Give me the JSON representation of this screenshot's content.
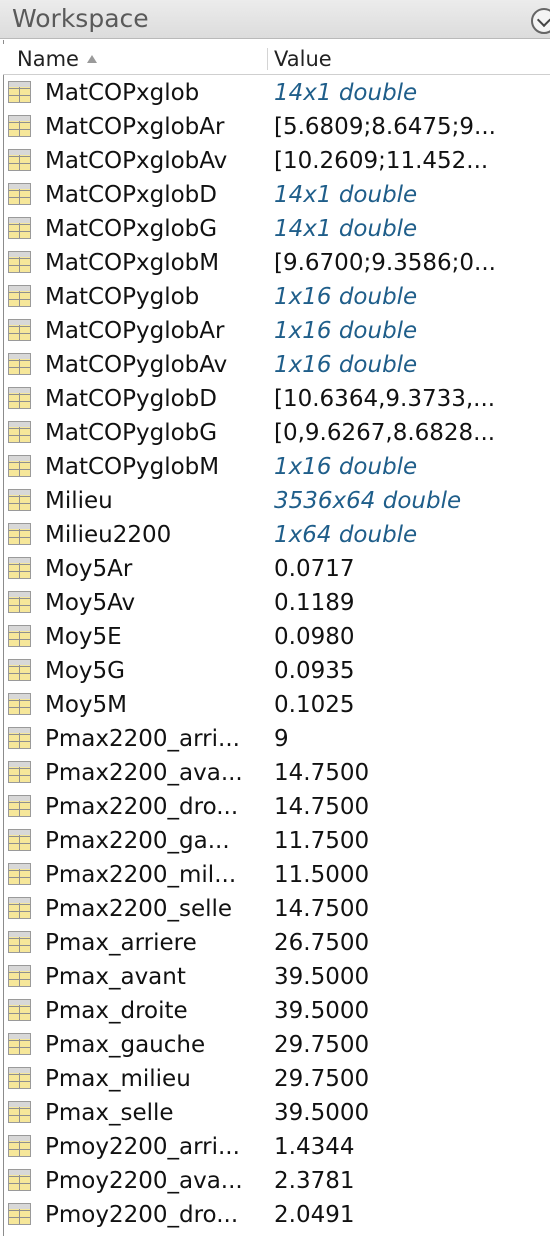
{
  "window": {
    "title": "Workspace"
  },
  "columns": {
    "name": "Name",
    "value": "Value"
  },
  "icons": {
    "variable": "matrix-variable-icon",
    "sort": "sort-ascending-icon",
    "menu": "panel-menu-icon"
  },
  "colors": {
    "summary_value": "#1f5e8a",
    "icon_fill": "#f6e79a"
  },
  "variables": [
    {
      "name": "MatCOPxglob",
      "value": "14x1 double",
      "summary": true
    },
    {
      "name": "MatCOPxglobAr",
      "value": "[5.6809;8.6475;9...",
      "summary": false
    },
    {
      "name": "MatCOPxglobAv",
      "value": "[10.2609;11.452...",
      "summary": false
    },
    {
      "name": "MatCOPxglobD",
      "value": "14x1 double",
      "summary": true
    },
    {
      "name": "MatCOPxglobG",
      "value": "14x1 double",
      "summary": true
    },
    {
      "name": "MatCOPxglobM",
      "value": "[9.6700;9.3586;0...",
      "summary": false
    },
    {
      "name": "MatCOPyglob",
      "value": "1x16 double",
      "summary": true
    },
    {
      "name": "MatCOPyglobAr",
      "value": "1x16 double",
      "summary": true
    },
    {
      "name": "MatCOPyglobAv",
      "value": "1x16 double",
      "summary": true
    },
    {
      "name": "MatCOPyglobD",
      "value": "[10.6364,9.3733,...",
      "summary": false
    },
    {
      "name": "MatCOPyglobG",
      "value": "[0,9.6267,8.6828...",
      "summary": false
    },
    {
      "name": "MatCOPyglobM",
      "value": "1x16 double",
      "summary": true
    },
    {
      "name": "Milieu",
      "value": "3536x64 double",
      "summary": true
    },
    {
      "name": "Milieu2200",
      "value": "1x64 double",
      "summary": true
    },
    {
      "name": "Moy5Ar",
      "value": "0.0717",
      "summary": false
    },
    {
      "name": "Moy5Av",
      "value": "0.1189",
      "summary": false
    },
    {
      "name": "Moy5E",
      "value": "0.0980",
      "summary": false
    },
    {
      "name": "Moy5G",
      "value": "0.0935",
      "summary": false
    },
    {
      "name": "Moy5M",
      "value": "0.1025",
      "summary": false
    },
    {
      "name": "Pmax2200_arri...",
      "value": "9",
      "summary": false
    },
    {
      "name": "Pmax2200_ava...",
      "value": "14.7500",
      "summary": false
    },
    {
      "name": "Pmax2200_dro...",
      "value": "14.7500",
      "summary": false
    },
    {
      "name": "Pmax2200_ga...",
      "value": "11.7500",
      "summary": false
    },
    {
      "name": "Pmax2200_mil...",
      "value": "11.5000",
      "summary": false
    },
    {
      "name": "Pmax2200_selle",
      "value": "14.7500",
      "summary": false
    },
    {
      "name": "Pmax_arriere",
      "value": "26.7500",
      "summary": false
    },
    {
      "name": "Pmax_avant",
      "value": "39.5000",
      "summary": false
    },
    {
      "name": "Pmax_droite",
      "value": "39.5000",
      "summary": false
    },
    {
      "name": "Pmax_gauche",
      "value": "29.7500",
      "summary": false
    },
    {
      "name": "Pmax_milieu",
      "value": "29.7500",
      "summary": false
    },
    {
      "name": "Pmax_selle",
      "value": "39.5000",
      "summary": false
    },
    {
      "name": "Pmoy2200_arri...",
      "value": "1.4344",
      "summary": false
    },
    {
      "name": "Pmoy2200_ava...",
      "value": "2.3781",
      "summary": false
    },
    {
      "name": "Pmoy2200_dro...",
      "value": "2.0491",
      "summary": false
    }
  ]
}
